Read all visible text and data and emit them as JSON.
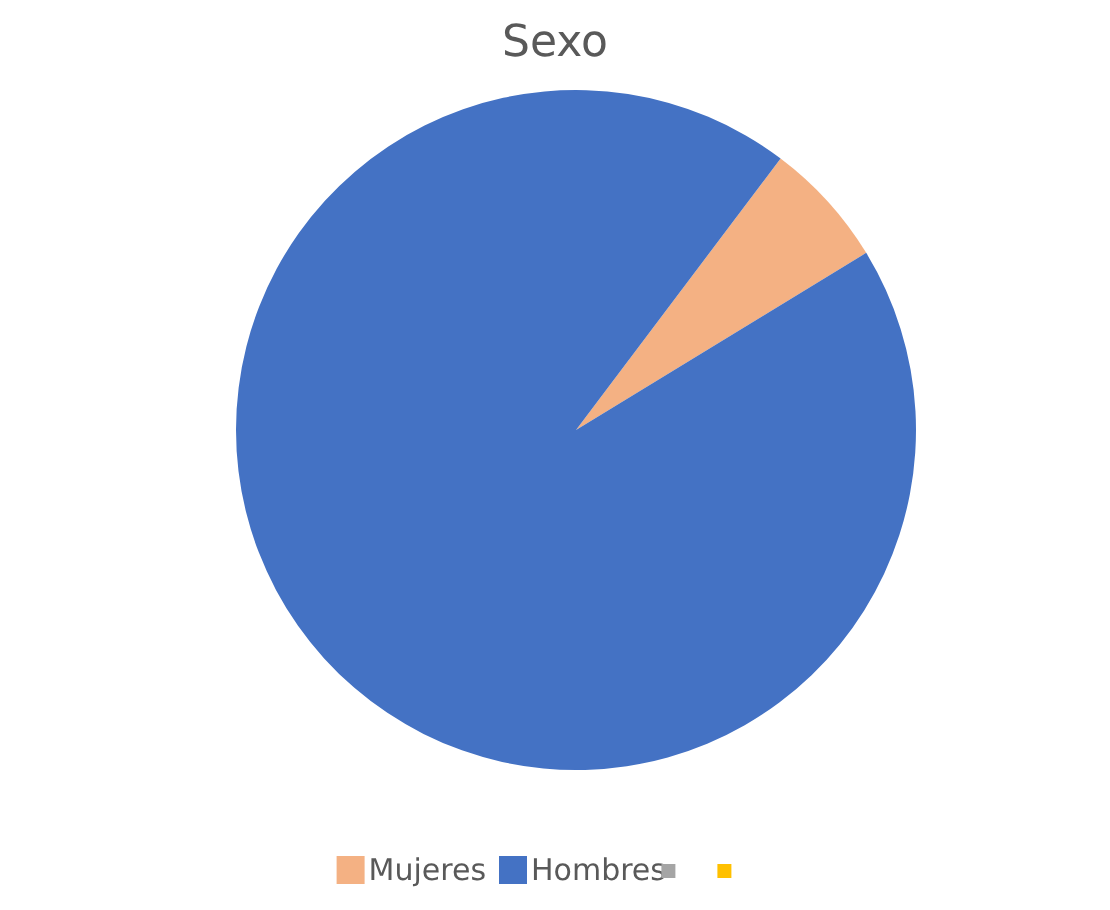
{
  "chart_data": {
    "type": "pie",
    "title": "Sexo",
    "categories": [
      "Mujeres",
      "Hombres"
    ],
    "values": [
      6,
      94
    ],
    "colors": [
      "#f4b183",
      "#4472c4"
    ],
    "legend": "bottom"
  }
}
